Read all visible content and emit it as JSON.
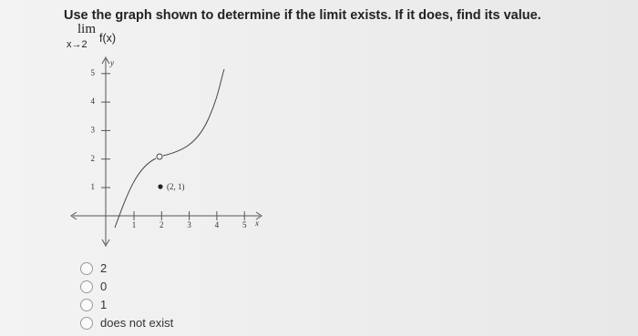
{
  "question": "Use the graph shown to determine if the limit exists. If it does, find its value.",
  "limit": {
    "operator": "lim",
    "approach": "x→2",
    "function": "f(x)"
  },
  "graph": {
    "y_axis_label": "y",
    "x_axis_label": "x",
    "y_tick_labels": [
      "1",
      "2",
      "3",
      "4",
      "5"
    ],
    "x_tick_labels": [
      "1",
      "2",
      "3",
      "4",
      "5"
    ],
    "point_label": "(2, 1)"
  },
  "options": [
    "2",
    "0",
    "1",
    "does not exist"
  ]
}
